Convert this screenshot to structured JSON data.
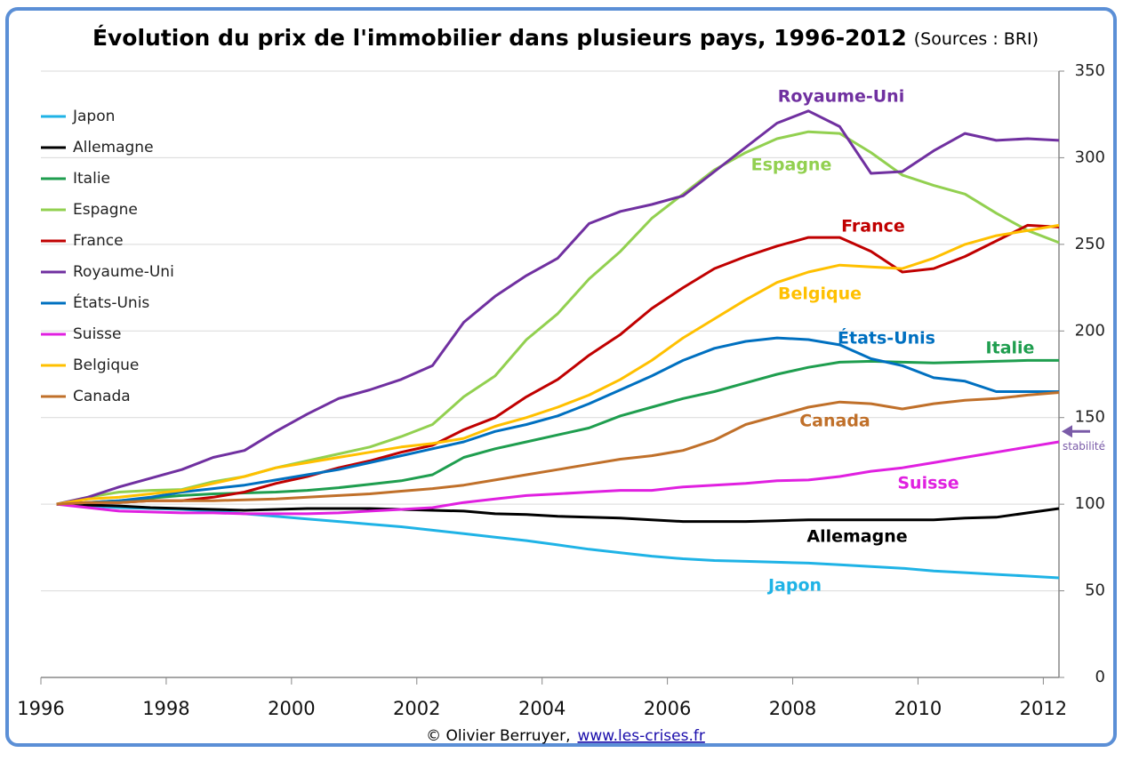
{
  "chart_data": {
    "type": "line",
    "title": "Évolution du prix de l'immobilier dans plusieurs pays, 1996-2012",
    "subtitle": "(Sources : BRI)",
    "credit": "© Olivier Berruyer,",
    "credit_link": "www.les-crises.fr",
    "annotation": {
      "text": "stabilité",
      "y": 142,
      "color": "#7a5ba8"
    },
    "y_axis_position": "right",
    "grid": true,
    "xlim": [
      1996,
      2012.25
    ],
    "xticks": [
      1996,
      1998,
      2000,
      2002,
      2004,
      2006,
      2008,
      2010,
      2012
    ],
    "ylim": [
      0,
      350
    ],
    "yticks": [
      0,
      50,
      100,
      150,
      200,
      250,
      300,
      350
    ],
    "x": [
      1996.25,
      1996.75,
      1997.25,
      1997.75,
      1998.25,
      1998.75,
      1999.25,
      1999.75,
      2000.25,
      2000.75,
      2001.25,
      2001.75,
      2002.25,
      2002.75,
      2003.25,
      2003.75,
      2004.25,
      2004.75,
      2005.25,
      2005.75,
      2006.25,
      2006.75,
      2007.25,
      2007.75,
      2008.25,
      2008.75,
      2009.25,
      2009.75,
      2010.25,
      2010.75,
      2011.25,
      2011.75,
      2012.25
    ],
    "series": [
      {
        "name": "Japon",
        "color": "#1fb3e6",
        "values": [
          100,
          99,
          98,
          97.5,
          97,
          96,
          94.5,
          93,
          91.5,
          90,
          88.5,
          87,
          85,
          83,
          81,
          79,
          76.5,
          74,
          72,
          70,
          68.5,
          67.5,
          67,
          66.5,
          66,
          65,
          64,
          63,
          61.5,
          60.5,
          59.5,
          58.5,
          57.5
        ]
      },
      {
        "name": "Allemagne",
        "color": "#000000",
        "values": [
          100,
          99.5,
          99,
          98,
          97.5,
          97,
          96.5,
          97,
          97.5,
          97.5,
          97.5,
          97,
          96.5,
          96,
          94.5,
          94,
          93,
          92.5,
          92,
          91,
          90,
          90,
          90,
          90.5,
          91,
          91,
          91,
          91,
          91,
          92,
          92.5,
          95,
          97.5
        ]
      },
      {
        "name": "Italie",
        "color": "#1f9e4f",
        "values": [
          100,
          101,
          102,
          103.5,
          105,
          106,
          106.5,
          107,
          108,
          109.5,
          111.5,
          113.5,
          117,
          127,
          132,
          136,
          140,
          144,
          151,
          156,
          161,
          165,
          170,
          175,
          179,
          182,
          182.5,
          182,
          181.5,
          182,
          182.5,
          183,
          183
        ]
      },
      {
        "name": "Espagne",
        "color": "#92d050",
        "values": [
          100,
          104,
          107,
          108,
          108.5,
          113,
          116,
          121,
          125,
          129,
          133,
          139,
          146,
          162,
          174,
          195,
          210,
          230,
          246,
          265,
          279,
          293,
          303,
          311,
          315,
          314,
          303,
          290,
          284,
          279,
          268,
          258,
          251
        ]
      },
      {
        "name": "France",
        "color": "#c00000",
        "values": [
          100,
          101,
          101,
          102,
          102,
          104,
          107,
          112,
          116,
          121,
          125,
          130,
          134,
          143,
          150,
          162,
          172,
          186,
          198,
          213,
          225,
          236,
          243,
          249,
          254,
          254,
          246,
          234,
          236,
          243,
          252,
          261,
          260
        ]
      },
      {
        "name": "Royaume-Uni",
        "color": "#7030a0",
        "values": [
          100,
          104,
          110,
          115,
          120,
          127,
          131,
          142,
          152,
          161,
          166,
          172,
          180,
          205,
          220,
          232,
          242,
          262,
          269,
          273,
          278,
          292,
          306,
          320,
          327,
          318,
          291,
          292,
          304,
          314,
          310,
          311,
          310
        ]
      },
      {
        "name": "États-Unis",
        "color": "#0070c0",
        "values": [
          100,
          101,
          102,
          104,
          107,
          109,
          111,
          114,
          117,
          120,
          124,
          128,
          132,
          136,
          142,
          146,
          151,
          158,
          166,
          174,
          183,
          190,
          194,
          196,
          195,
          192,
          184,
          180,
          173,
          171,
          165,
          165,
          165
        ]
      },
      {
        "name": "Suisse",
        "color": "#e020e0",
        "values": [
          100,
          98,
          96,
          95.5,
          95,
          95,
          94.5,
          94.5,
          94.5,
          95,
          96,
          97,
          98,
          101,
          103,
          105,
          106,
          107,
          108,
          108,
          110,
          111,
          112,
          113.5,
          114,
          116,
          119,
          121,
          124,
          127,
          130,
          133,
          136
        ]
      },
      {
        "name": "Belgique",
        "color": "#ffc000",
        "values": [
          100,
          103,
          104,
          106,
          108,
          112,
          116,
          121,
          124,
          127,
          130,
          133,
          135,
          138,
          145,
          150,
          156,
          163,
          172,
          183,
          196,
          207,
          218,
          228,
          234,
          238,
          237,
          236,
          242,
          250,
          255,
          258,
          261
        ]
      },
      {
        "name": "Canada",
        "color": "#c0702a",
        "values": [
          100,
          101,
          101,
          102,
          102,
          102,
          102.5,
          103,
          104,
          105,
          106,
          107.5,
          109,
          111,
          114,
          117,
          120,
          123,
          126,
          128,
          131,
          137,
          146,
          151,
          156,
          159,
          158,
          155,
          158,
          160,
          161,
          163,
          164.5
        ]
      }
    ]
  }
}
